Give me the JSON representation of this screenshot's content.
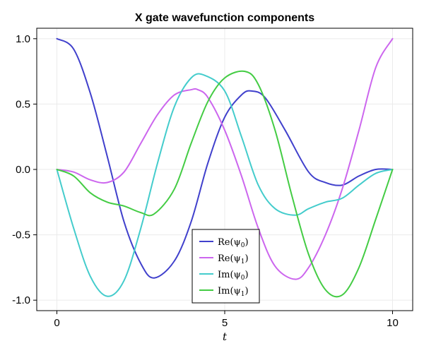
{
  "chart_data": {
    "type": "line",
    "title": "X gate wavefunction components",
    "xlabel": "t",
    "ylabel": "",
    "xlim": [
      -0.6,
      10.6
    ],
    "ylim": [
      -1.08,
      1.08
    ],
    "xticks": [
      0,
      5,
      10
    ],
    "xtick_labels": [
      "0",
      "5",
      "10"
    ],
    "yticks": [
      1.0,
      0.5,
      0.0,
      -0.5,
      -1.0
    ],
    "ytick_labels": [
      "1.0",
      "0.5",
      "0.0",
      "-0.5",
      "-1.0"
    ],
    "grid": true,
    "legend_position": "bottom-center",
    "series": [
      {
        "name": "Re(ψ0)",
        "label_main": "Re(ψ",
        "label_sub": "0",
        "label_close": ")",
        "color": "#4040cc",
        "x": [
          0,
          0.5,
          1,
          1.5,
          2,
          2.5,
          2.9,
          3.5,
          4,
          4.5,
          5,
          5.5,
          5.8,
          6.2,
          6.8,
          7.5,
          8,
          8.5,
          9,
          9.5,
          10
        ],
        "y": [
          1.0,
          0.92,
          0.58,
          0.1,
          -0.4,
          -0.72,
          -0.83,
          -0.7,
          -0.4,
          0.05,
          0.4,
          0.57,
          0.6,
          0.55,
          0.3,
          -0.02,
          -0.1,
          -0.12,
          -0.05,
          0.0,
          0.0
        ]
      },
      {
        "name": "Re(ψ1)",
        "label_main": "Re(ψ",
        "label_sub": "1",
        "label_close": ")",
        "color": "#cc66ee",
        "x": [
          0,
          0.5,
          1,
          1.5,
          2,
          2.5,
          3,
          3.5,
          4,
          4.2,
          4.5,
          5,
          5.5,
          6,
          6.5,
          7.1,
          7.5,
          8,
          8.5,
          9,
          9.5,
          10
        ],
        "y": [
          0.0,
          -0.02,
          -0.08,
          -0.1,
          -0.02,
          0.2,
          0.42,
          0.57,
          0.61,
          0.61,
          0.55,
          0.3,
          -0.05,
          -0.45,
          -0.74,
          -0.84,
          -0.75,
          -0.5,
          -0.15,
          0.3,
          0.78,
          1.0
        ]
      },
      {
        "name": "Im(ψ0)",
        "label_main": "Im(ψ",
        "label_sub": "0",
        "label_close": ")",
        "color": "#44cccc",
        "x": [
          0,
          0.5,
          1,
          1.5,
          2,
          2.5,
          3,
          3.5,
          4,
          4.4,
          5,
          5.5,
          6,
          6.5,
          7.1,
          7.5,
          8,
          8.5,
          9,
          9.5,
          10
        ],
        "y": [
          0.0,
          -0.45,
          -0.82,
          -0.97,
          -0.85,
          -0.45,
          0.05,
          0.48,
          0.7,
          0.72,
          0.6,
          0.25,
          -0.12,
          -0.3,
          -0.35,
          -0.3,
          -0.25,
          -0.22,
          -0.12,
          -0.03,
          0.0
        ]
      },
      {
        "name": "Im(ψ1)",
        "label_main": "Im(ψ",
        "label_sub": "1",
        "label_close": ")",
        "color": "#44cc44",
        "x": [
          0,
          0.5,
          1,
          1.5,
          2,
          2.5,
          2.9,
          3.5,
          4,
          4.5,
          5,
          5.6,
          6,
          6.5,
          7,
          7.5,
          8,
          8.5,
          9,
          9.5,
          10
        ],
        "y": [
          0.0,
          -0.05,
          -0.18,
          -0.25,
          -0.28,
          -0.33,
          -0.34,
          -0.15,
          0.2,
          0.52,
          0.7,
          0.75,
          0.65,
          0.3,
          -0.2,
          -0.65,
          -0.92,
          -0.96,
          -0.75,
          -0.38,
          0.0
        ]
      }
    ]
  }
}
